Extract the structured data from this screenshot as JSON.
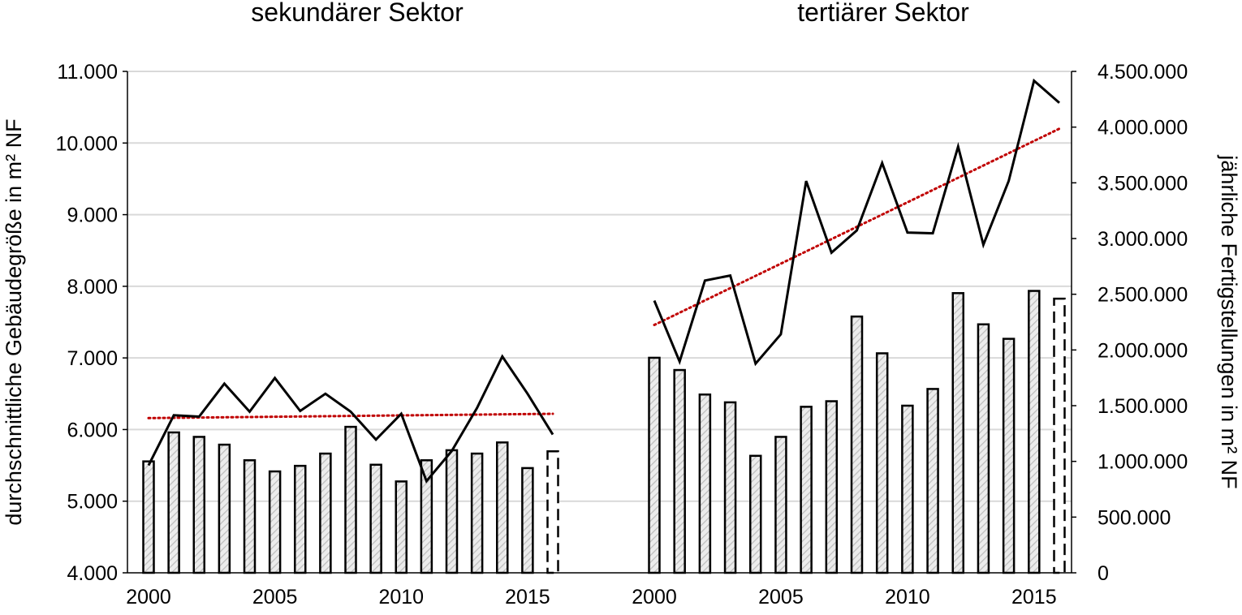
{
  "chart_data": {
    "type": "bar",
    "panels": [
      {
        "title": "sekundärer Sektor",
        "x": [
          2000,
          2001,
          2002,
          2003,
          2004,
          2005,
          2006,
          2007,
          2008,
          2009,
          2010,
          2011,
          2012,
          2013,
          2014,
          2015,
          2016
        ],
        "bars_completions_m2": [
          1000000,
          1260000,
          1220000,
          1150000,
          1010000,
          910000,
          960000,
          1070000,
          1310000,
          970000,
          820000,
          1010000,
          1100000,
          1070000,
          1170000,
          940000,
          1090000
        ],
        "last_bar_dashed": true,
        "line_avg_building_size_m2": [
          5500,
          6200,
          6180,
          6640,
          6250,
          6720,
          6260,
          6500,
          6250,
          5860,
          6220,
          5280,
          5700,
          6300,
          7020,
          6500,
          5930
        ],
        "trend_start": 6160,
        "trend_end": 6220
      },
      {
        "title": "tertiärer Sektor",
        "x": [
          2000,
          2001,
          2002,
          2003,
          2004,
          2005,
          2006,
          2007,
          2008,
          2009,
          2010,
          2011,
          2012,
          2013,
          2014,
          2015,
          2016
        ],
        "bars_completions_m2": [
          1930000,
          1820000,
          1600000,
          1530000,
          1050000,
          1220000,
          1490000,
          1540000,
          2300000,
          1970000,
          1500000,
          1650000,
          2510000,
          2230000,
          2100000,
          2530000,
          2460000
        ],
        "last_bar_dashed": true,
        "line_avg_building_size_m2": [
          7800,
          6950,
          8080,
          8150,
          6920,
          7330,
          9470,
          8470,
          8780,
          9720,
          8750,
          8740,
          9950,
          8580,
          9470,
          10870,
          10560
        ],
        "trend_start": 7460,
        "trend_end": 10200
      }
    ],
    "y_left": {
      "label": "durchschnittliche Gebäudegröße in m² NF",
      "ylim": [
        4000,
        11000
      ],
      "ticks": [
        "4.000",
        "5.000",
        "6.000",
        "7.000",
        "8.000",
        "9.000",
        "10.000",
        "11.000"
      ]
    },
    "y_right": {
      "label": "jährliche Fertigstellungen in m² NF",
      "ylim": [
        0,
        4500000
      ],
      "ticks": [
        "0",
        "500.000",
        "1.000.000",
        "1.500.000",
        "2.000.000",
        "2.500.000",
        "3.000.000",
        "3.500.000",
        "4.000.000",
        "4.500.000"
      ]
    },
    "x_tick_labels": [
      "2000",
      "2005",
      "2010",
      "2015"
    ],
    "grid": true,
    "colors": {
      "bars_fill": "#d8d8d8",
      "bars_stroke": "#000000",
      "line": "#000000",
      "trend": "#c00000",
      "grid": "#d9d9d9"
    }
  }
}
